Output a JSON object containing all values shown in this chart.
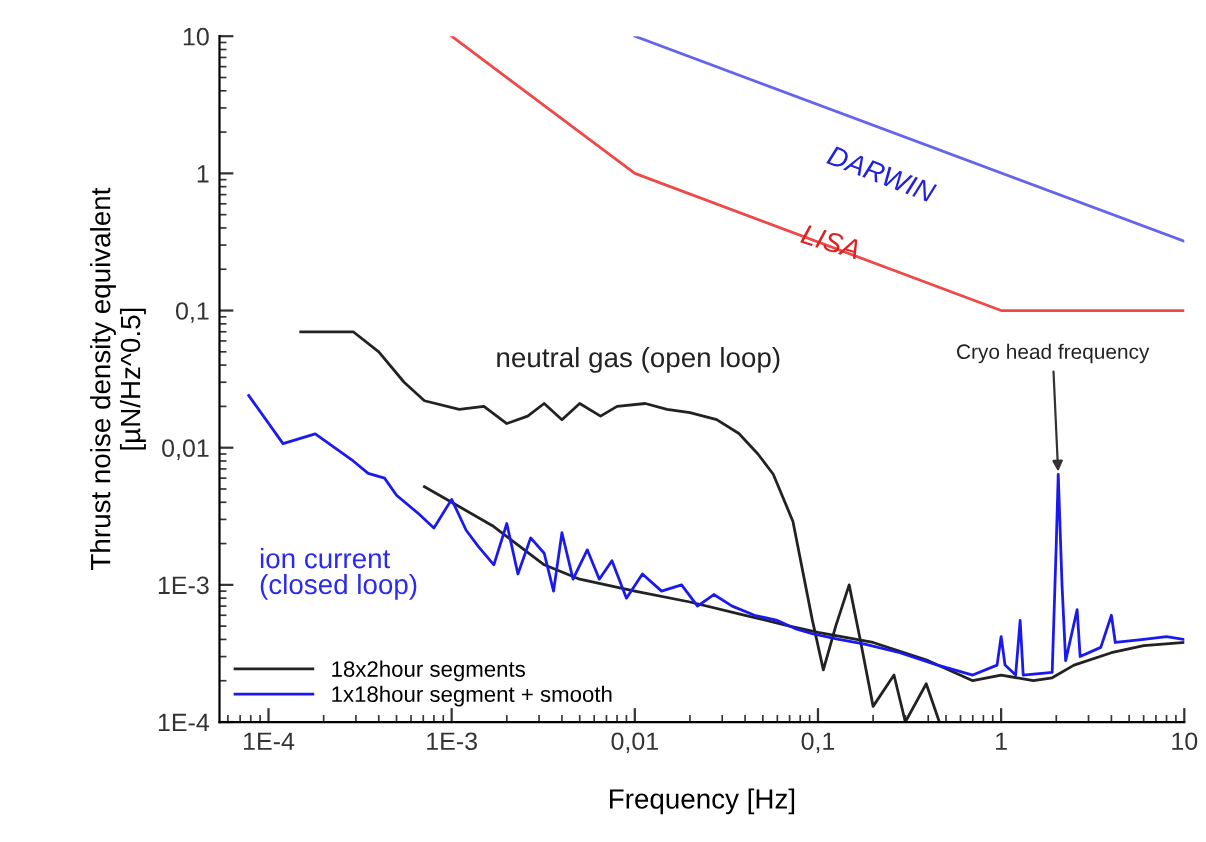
{
  "chart_data": {
    "type": "line",
    "xlabel": "Frequency [Hz]",
    "ylabel": "Thrust noise density equivalent\n[µN/Hz^0.5]",
    "log": "xy",
    "grid": false,
    "legend": "bottom left",
    "xlim": [
      5.4e-05,
      10
    ],
    "ylim": [
      0.0001,
      10
    ],
    "xticks": [
      {
        "value": 0.0001,
        "label": "1E-4"
      },
      {
        "value": 0.001,
        "label": "1E-3"
      },
      {
        "value": 0.01,
        "label": "0,01"
      },
      {
        "value": 0.1,
        "label": "0,1"
      },
      1,
      10
    ],
    "yticks": [
      {
        "value": 0.0001,
        "label": "1E-4"
      },
      {
        "value": 0.001,
        "label": "1E-3"
      },
      {
        "value": 0.01,
        "label": "0,01"
      },
      {
        "value": 0.1,
        "label": "0,1"
      },
      1,
      10
    ],
    "series": [
      {
        "color": "#6464ec",
        "x": [
          0.01,
          10
        ],
        "values": [
          10,
          0.32
        ]
      },
      {
        "color": "#ee4848",
        "x": [
          0.001,
          0.01,
          1,
          10
        ],
        "values": [
          10,
          1,
          0.1,
          0.1
        ]
      },
      {
        "name": "18x2hour segments",
        "color": "#222222",
        "x": [
          0.00015,
          0.00029,
          0.0004,
          0.00055,
          0.00071,
          0.0011,
          0.0015,
          0.002,
          0.0026,
          0.0032,
          0.004,
          0.005,
          0.0065,
          0.008,
          0.0114,
          0.015,
          0.02,
          0.028,
          0.037,
          0.047,
          0.057,
          0.073,
          0.093,
          0.107,
          0.125,
          0.148,
          0.17,
          0.2,
          0.26,
          0.3,
          0.39,
          0.46
        ],
        "values": [
          0.07,
          0.07,
          0.05,
          0.03,
          0.022,
          0.019,
          0.02,
          0.015,
          0.017,
          0.021,
          0.016,
          0.021,
          0.017,
          0.02,
          0.021,
          0.019,
          0.018,
          0.016,
          0.0127,
          0.009,
          0.0064,
          0.0029,
          0.00056,
          0.00024,
          0.0005,
          0.001,
          0.0004,
          0.00013,
          0.00022,
          0.0001,
          0.00019,
          0.0001
        ]
      },
      {
        "color": "#222222",
        "x": [
          0.00071,
          0.001,
          0.00167,
          0.0032,
          0.005,
          0.01,
          0.02,
          0.04,
          0.07,
          0.1,
          0.2,
          0.4,
          0.7,
          1,
          1.5,
          1.9,
          2.5,
          4,
          6,
          10
        ],
        "values": [
          0.0052,
          0.004,
          0.0027,
          0.0014,
          0.0011,
          0.0009,
          0.00075,
          0.0006,
          0.0005,
          0.00045,
          0.00038,
          0.00028,
          0.0002,
          0.00022,
          0.0002,
          0.00021,
          0.00026,
          0.00032,
          0.00036,
          0.00038
        ]
      },
      {
        "name": "1x18hour segment + smooth",
        "color": "#1a1aee",
        "x": [
          7.8e-05,
          0.00012,
          0.00018,
          0.00029,
          0.00035,
          0.00043,
          0.0005,
          0.00066,
          0.0008,
          0.001,
          0.0012,
          0.0014,
          0.0017,
          0.002,
          0.0023,
          0.0027,
          0.0032,
          0.0036,
          0.004,
          0.0046,
          0.0055,
          0.0064,
          0.0075,
          0.009,
          0.011,
          0.014,
          0.018,
          0.022,
          0.027,
          0.034,
          0.045,
          0.06,
          0.075,
          0.093,
          0.13,
          0.18,
          0.28,
          0.45,
          0.7,
          0.95,
          1.0,
          1.05,
          1.2,
          1.27,
          1.32,
          1.9,
          2.0,
          2.05,
          2.15,
          2.25,
          2.6,
          2.7,
          3.5,
          4,
          4.2,
          6,
          8,
          10
        ],
        "values": [
          0.024,
          0.0107,
          0.0126,
          0.008,
          0.0065,
          0.006,
          0.0045,
          0.0033,
          0.0026,
          0.0042,
          0.0025,
          0.0019,
          0.0014,
          0.0028,
          0.0012,
          0.0022,
          0.0017,
          0.0009,
          0.0024,
          0.0011,
          0.0018,
          0.0011,
          0.0015,
          0.0008,
          0.0012,
          0.0009,
          0.001,
          0.0007,
          0.00085,
          0.0007,
          0.0006,
          0.00055,
          0.00048,
          0.00044,
          0.0004,
          0.00037,
          0.00032,
          0.00026,
          0.00022,
          0.00026,
          0.00042,
          0.00026,
          0.00022,
          0.00055,
          0.00022,
          0.00023,
          0.002,
          0.0064,
          0.001,
          0.00028,
          0.00066,
          0.0003,
          0.00035,
          0.0006,
          0.00038,
          0.0004,
          0.00042,
          0.0004
        ]
      }
    ],
    "annotations": [
      "DARWIN",
      "LISA",
      "neutral gas (open loop)",
      "ion current\n(closed loop)",
      {
        "text": "Cryo head frequency",
        "x": 2.05,
        "y": 0.0064
      }
    ]
  }
}
